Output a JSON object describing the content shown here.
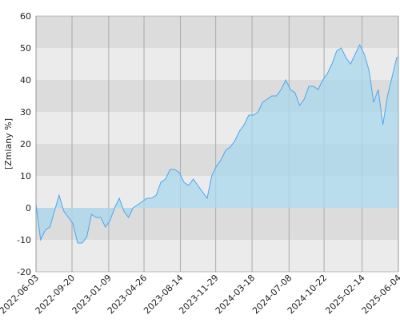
{
  "chart_data": {
    "type": "area",
    "y_label": "[Zmiany %]",
    "x": [
      "2022-06-03",
      "2022-06-17",
      "2022-07-01",
      "2022-07-15",
      "2022-07-29",
      "2022-08-12",
      "2022-08-26",
      "2022-09-09",
      "2022-09-23",
      "2022-10-07",
      "2022-10-21",
      "2022-11-04",
      "2022-11-18",
      "2022-12-02",
      "2022-12-16",
      "2022-12-30",
      "2023-01-13",
      "2023-01-27",
      "2023-02-10",
      "2023-02-24",
      "2023-03-10",
      "2023-03-24",
      "2023-04-07",
      "2023-04-21",
      "2023-05-05",
      "2023-05-19",
      "2023-06-02",
      "2023-06-16",
      "2023-06-30",
      "2023-07-14",
      "2023-07-28",
      "2023-08-11",
      "2023-08-25",
      "2023-09-08",
      "2023-09-22",
      "2023-10-06",
      "2023-10-20",
      "2023-11-03",
      "2023-11-17",
      "2023-12-01",
      "2023-12-15",
      "2023-12-29",
      "2024-01-12",
      "2024-01-26",
      "2024-02-09",
      "2024-02-23",
      "2024-03-08",
      "2024-03-22",
      "2024-04-05",
      "2024-04-19",
      "2024-05-03",
      "2024-05-17",
      "2024-05-31",
      "2024-06-14",
      "2024-06-28",
      "2024-07-12",
      "2024-07-26",
      "2024-08-09",
      "2024-08-23",
      "2024-09-06",
      "2024-09-20",
      "2024-10-04",
      "2024-10-18",
      "2024-11-01",
      "2024-11-15",
      "2024-11-29",
      "2024-12-13",
      "2024-12-27",
      "2025-01-10",
      "2025-01-24",
      "2025-02-07",
      "2025-02-21",
      "2025-03-07",
      "2025-03-21",
      "2025-04-04",
      "2025-04-18",
      "2025-05-02",
      "2025-05-16",
      "2025-05-30",
      "2025-06-04"
    ],
    "series": [
      {
        "color": "#4da6f0",
        "fill": "#a8d8ee",
        "values": [
          1,
          -10,
          -7,
          -6,
          -1,
          4,
          -1,
          -3,
          -5,
          -11,
          -11,
          -9,
          -2,
          -3,
          -3,
          -6,
          -4,
          0,
          3,
          -1,
          -3,
          0,
          1,
          2,
          3,
          3,
          4,
          8,
          9,
          12,
          12,
          11,
          8,
          7,
          9,
          7,
          5,
          3,
          10,
          13,
          15,
          18,
          19,
          21,
          24,
          26,
          29,
          29,
          30,
          33,
          34,
          35,
          35,
          37,
          40,
          37,
          36,
          32,
          34,
          38,
          38,
          37,
          40,
          42,
          45,
          49,
          50,
          47,
          45,
          48,
          51,
          48,
          43,
          33,
          37,
          26,
          35,
          41,
          47,
          47
        ]
      }
    ],
    "xlim": [
      "2022-06-03",
      "2025-06-04"
    ],
    "xticks": [
      "2022-06-03",
      "2022-09-20",
      "2023-01-09",
      "2023-04-26",
      "2023-08-14",
      "2023-11-29",
      "2024-03-18",
      "2024-07-08",
      "2024-10-22",
      "2025-02-14",
      "2025-06-04"
    ],
    "ylim": [
      -20,
      60
    ],
    "yticks": [
      -20,
      -10,
      0,
      10,
      20,
      30,
      40,
      50,
      60
    ],
    "band_colors": [
      "#ebebeb",
      "#dcdcdc"
    ],
    "grid_color": "#aaaaaa"
  }
}
